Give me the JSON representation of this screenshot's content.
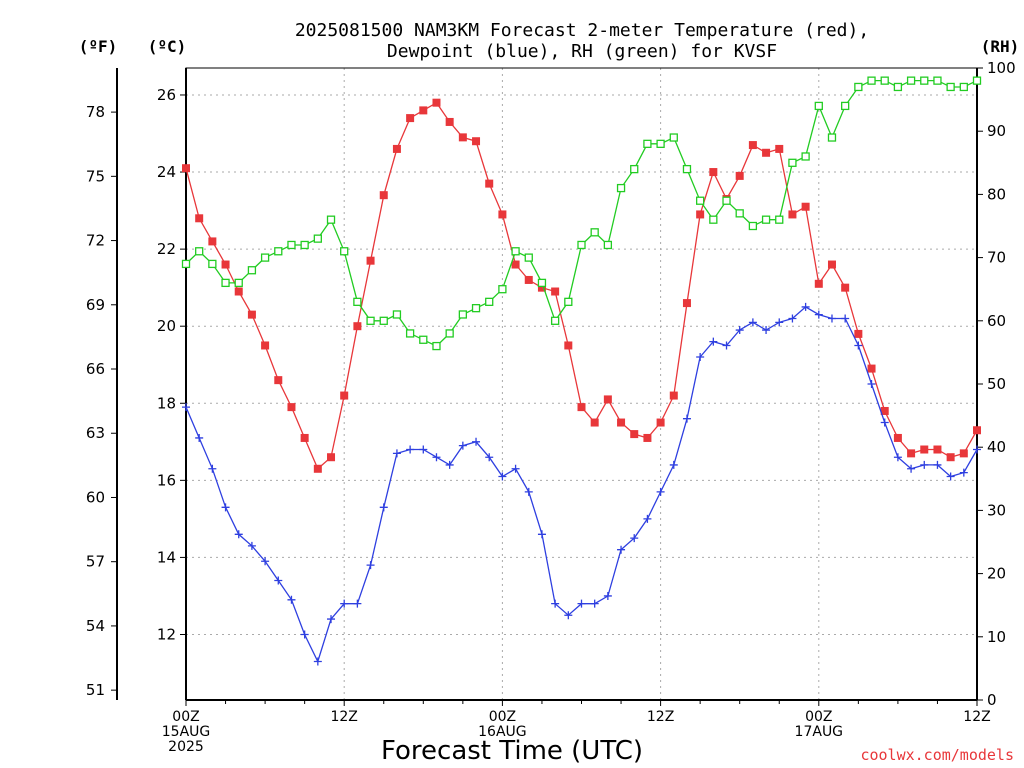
{
  "title": {
    "line1": "2025081500 NAM3KM Forecast 2-meter Temperature (red),",
    "line2": "Dewpoint (blue), RH (green) for KVSF"
  },
  "units": {
    "f": "(ºF)",
    "c": "(ºC)",
    "rh": "(RH)"
  },
  "xlabel": "Forecast Time (UTC)",
  "credit": "coolwx.com/models",
  "colors": {
    "temperature": "#e8373a",
    "dewpoint": "#2e3fe0",
    "rh": "#22cc22",
    "credit": "#e8373a",
    "grid": "#aaaaaa"
  },
  "chart_data": {
    "type": "line",
    "x": [
      0,
      1,
      2,
      3,
      4,
      5,
      6,
      7,
      8,
      9,
      10,
      11,
      12,
      13,
      14,
      15,
      16,
      17,
      18,
      19,
      20,
      21,
      22,
      23,
      24,
      25,
      26,
      27,
      28,
      29,
      30,
      31,
      32,
      33,
      34,
      35,
      36,
      37,
      38,
      39,
      40,
      41,
      42,
      43,
      44,
      45,
      46,
      47,
      48,
      49,
      50,
      51,
      52,
      53,
      54,
      55,
      56,
      57,
      58,
      59,
      60
    ],
    "xlim": [
      0,
      60
    ],
    "x_ticks": [
      {
        "x": 0,
        "lines": [
          "00Z",
          "15AUG",
          "2025"
        ]
      },
      {
        "x": 12,
        "lines": [
          "12Z"
        ]
      },
      {
        "x": 24,
        "lines": [
          "00Z",
          "16AUG"
        ]
      },
      {
        "x": 36,
        "lines": [
          "12Z"
        ]
      },
      {
        "x": 48,
        "lines": [
          "00Z",
          "17AUG"
        ]
      },
      {
        "x": 60,
        "lines": [
          "12Z"
        ]
      }
    ],
    "y_left_c": {
      "label": "(ºC)",
      "ylim": [
        10.3,
        26.7
      ],
      "ticks": [
        "12",
        "14",
        "16",
        "18",
        "20",
        "22",
        "24",
        "26"
      ]
    },
    "y_left_f": {
      "label": "(ºF)",
      "ticks": [
        "51",
        "54",
        "57",
        "60",
        "63",
        "66",
        "69",
        "72",
        "75",
        "78"
      ]
    },
    "y_right_rh": {
      "label": "(RH)",
      "ylim": [
        0,
        100
      ],
      "ticks": [
        "0",
        "10",
        "20",
        "30",
        "40",
        "50",
        "60",
        "70",
        "80",
        "90",
        "100"
      ]
    },
    "grid": true,
    "series": [
      {
        "name": "Temperature",
        "axis": "c",
        "marker": "filled-square",
        "values": [
          24.1,
          22.8,
          22.2,
          21.6,
          20.9,
          20.3,
          19.5,
          18.6,
          17.9,
          17.1,
          16.3,
          16.6,
          18.2,
          20.0,
          21.7,
          23.4,
          24.6,
          25.4,
          25.6,
          25.8,
          25.3,
          24.9,
          24.8,
          23.7,
          22.9,
          21.6,
          21.2,
          21.0,
          20.9,
          19.5,
          17.9,
          17.5,
          18.1,
          17.5,
          17.2,
          17.1,
          17.5,
          18.2,
          20.6,
          22.9,
          24.0,
          23.3,
          23.9,
          24.7,
          24.5,
          24.6,
          22.9,
          23.1,
          21.1,
          21.6,
          21.0,
          19.8,
          18.9,
          17.8,
          17.1,
          16.7,
          16.8,
          16.8,
          16.6,
          16.7,
          17.3
        ]
      },
      {
        "name": "Dewpoint",
        "axis": "c",
        "marker": "plus",
        "values": [
          17.9,
          17.1,
          16.3,
          15.3,
          14.6,
          14.3,
          13.9,
          13.4,
          12.9,
          12.0,
          11.3,
          12.4,
          12.8,
          12.8,
          13.8,
          15.3,
          16.7,
          16.8,
          16.8,
          16.6,
          16.4,
          16.9,
          17.0,
          16.6,
          16.1,
          16.3,
          15.7,
          14.6,
          12.8,
          12.5,
          12.8,
          12.8,
          13.0,
          14.2,
          14.5,
          15.0,
          15.7,
          16.4,
          17.6,
          19.2,
          19.6,
          19.5,
          19.9,
          20.1,
          19.9,
          20.1,
          20.2,
          20.5,
          20.3,
          20.2,
          20.2,
          19.5,
          18.5,
          17.5,
          16.6,
          16.3,
          16.4,
          16.4,
          16.1,
          16.2,
          16.8
        ]
      },
      {
        "name": "RH",
        "axis": "rh",
        "marker": "open-square",
        "values": [
          69,
          71,
          69,
          66,
          66,
          68,
          70,
          71,
          72,
          72,
          73,
          76,
          71,
          63,
          60,
          60,
          61,
          58,
          57,
          56,
          58,
          61,
          62,
          63,
          65,
          71,
          70,
          66,
          60,
          63,
          72,
          74,
          72,
          81,
          84,
          88,
          88,
          89,
          84,
          79,
          76,
          79,
          77,
          75,
          76,
          76,
          85,
          86,
          94,
          89,
          94,
          97,
          98,
          98,
          97,
          98,
          98,
          98,
          97,
          97,
          98
        ]
      }
    ]
  }
}
